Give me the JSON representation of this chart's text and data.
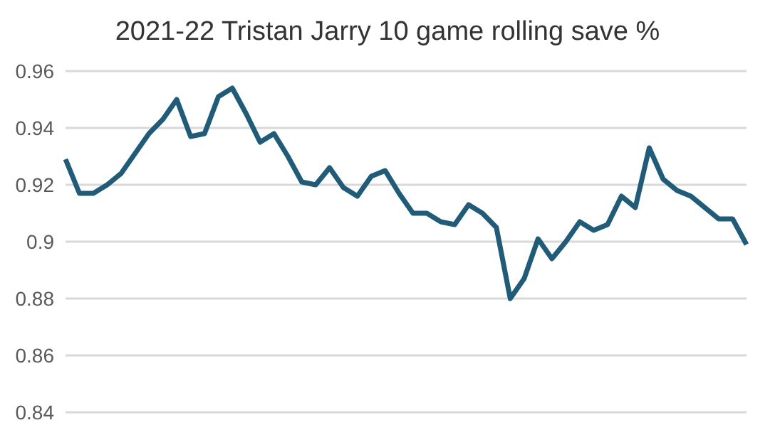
{
  "chart_data": {
    "type": "line",
    "title": "2021-22 Tristan Jarry 10 game rolling save %",
    "categories": [
      null,
      null,
      null,
      null,
      null,
      null,
      null,
      null,
      null,
      null,
      null,
      null,
      null,
      null,
      null,
      null,
      null,
      null,
      null,
      null,
      null,
      null,
      null,
      null,
      null,
      null,
      null,
      null,
      null,
      null,
      null,
      null,
      null,
      null,
      null,
      null,
      null,
      null,
      null,
      null,
      null,
      null,
      null,
      null,
      null,
      null,
      null,
      null,
      null,
      null
    ],
    "series": [
      {
        "color": "#1f5c7a",
        "values": [
          0.929,
          0.917,
          0.917,
          0.92,
          0.924,
          0.931,
          0.938,
          0.943,
          0.95,
          0.937,
          0.938,
          0.951,
          0.954,
          0.945,
          0.935,
          0.938,
          0.93,
          0.921,
          0.92,
          0.926,
          0.919,
          0.916,
          0.923,
          0.925,
          0.917,
          0.91,
          0.91,
          0.907,
          0.906,
          0.913,
          0.91,
          0.905,
          0.88,
          0.887,
          0.901,
          0.894,
          0.9,
          0.907,
          0.904,
          0.906,
          0.916,
          0.912,
          0.933,
          0.922,
          0.918,
          0.916,
          0.912,
          0.908,
          0.908,
          0.899
        ]
      }
    ],
    "ylim": [
      0.84,
      0.96
    ],
    "yticks": [
      0.84,
      0.86,
      0.88,
      0.9,
      0.92,
      0.94,
      0.96
    ],
    "grid": "y",
    "tick_labels": "y",
    "legend": false,
    "marker": "none",
    "line_style": "solid"
  }
}
